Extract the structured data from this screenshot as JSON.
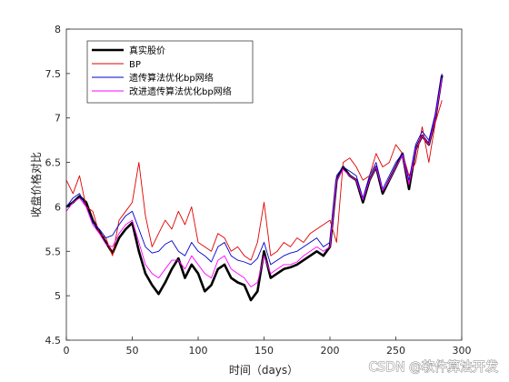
{
  "chart_data": {
    "type": "line",
    "title": "",
    "xlabel": "时间（days）",
    "ylabel": "收盘价格对比",
    "xlim": [
      0,
      300
    ],
    "ylim": [
      4.5,
      8
    ],
    "xticks": [
      "0",
      "50",
      "100",
      "150",
      "200",
      "250",
      "300"
    ],
    "yticks": [
      "4.5",
      "5",
      "5.5",
      "6",
      "6.5",
      "7",
      "7.5",
      "8"
    ],
    "grid": false,
    "legend_position": "top-left",
    "x": [
      0,
      5,
      10,
      15,
      20,
      25,
      30,
      35,
      40,
      45,
      50,
      55,
      60,
      65,
      70,
      75,
      80,
      85,
      90,
      95,
      100,
      105,
      110,
      115,
      120,
      125,
      130,
      135,
      140,
      145,
      150,
      155,
      160,
      165,
      170,
      175,
      180,
      185,
      190,
      195,
      200,
      205,
      210,
      215,
      220,
      225,
      230,
      235,
      240,
      245,
      250,
      255,
      260,
      265,
      270,
      275,
      280,
      285
    ],
    "series": [
      {
        "name": "真实股价",
        "color": "#000000",
        "width": 2.6,
        "values": [
          6.0,
          6.05,
          6.12,
          6.05,
          5.85,
          5.72,
          5.6,
          5.48,
          5.65,
          5.75,
          5.82,
          5.5,
          5.25,
          5.12,
          5.02,
          5.15,
          5.3,
          5.42,
          5.2,
          5.35,
          5.25,
          5.05,
          5.12,
          5.3,
          5.35,
          5.2,
          5.15,
          5.12,
          4.95,
          5.05,
          5.5,
          5.2,
          5.25,
          5.3,
          5.32,
          5.35,
          5.4,
          5.45,
          5.5,
          5.45,
          5.55,
          6.3,
          6.45,
          6.35,
          6.3,
          6.05,
          6.3,
          6.45,
          6.15,
          6.3,
          6.45,
          6.6,
          6.2,
          6.65,
          6.8,
          6.7,
          7.0,
          7.48
        ]
      },
      {
        "name": "BP",
        "color": "#e00000",
        "width": 0.9,
        "values": [
          6.3,
          6.15,
          6.35,
          6.0,
          5.95,
          5.7,
          5.65,
          5.45,
          5.85,
          5.95,
          6.05,
          6.5,
          5.9,
          5.55,
          5.7,
          5.85,
          5.75,
          5.95,
          5.8,
          6.0,
          5.6,
          5.55,
          5.5,
          5.7,
          5.65,
          5.5,
          5.55,
          5.45,
          5.4,
          5.6,
          6.05,
          5.45,
          5.5,
          5.6,
          5.55,
          5.65,
          5.6,
          5.7,
          5.75,
          5.8,
          5.85,
          5.6,
          6.5,
          6.55,
          6.45,
          6.3,
          6.35,
          6.6,
          6.45,
          6.5,
          6.7,
          6.6,
          6.35,
          6.5,
          6.9,
          6.5,
          6.95,
          7.2
        ]
      },
      {
        "name": "遗传算法优化bp网络",
        "color": "#0000cc",
        "width": 0.9,
        "values": [
          6.0,
          6.1,
          6.15,
          6.0,
          5.82,
          5.75,
          5.65,
          5.68,
          5.8,
          5.9,
          5.95,
          5.75,
          5.55,
          5.48,
          5.5,
          5.58,
          5.62,
          5.5,
          5.45,
          5.6,
          5.5,
          5.45,
          5.38,
          5.55,
          5.6,
          5.45,
          5.4,
          5.38,
          5.35,
          5.42,
          5.6,
          5.35,
          5.4,
          5.45,
          5.48,
          5.5,
          5.55,
          5.6,
          5.65,
          5.55,
          5.6,
          6.35,
          6.45,
          6.4,
          6.35,
          6.1,
          6.35,
          6.5,
          6.2,
          6.35,
          6.5,
          6.6,
          6.3,
          6.7,
          6.85,
          6.75,
          7.05,
          7.5
        ]
      },
      {
        "name": "改进遗传算法优化bp网络",
        "color": "#ff00ff",
        "width": 0.9,
        "values": [
          5.95,
          6.05,
          6.1,
          6.0,
          5.8,
          5.7,
          5.58,
          5.55,
          5.7,
          5.8,
          5.85,
          5.6,
          5.35,
          5.25,
          5.2,
          5.3,
          5.4,
          5.4,
          5.3,
          5.45,
          5.35,
          5.25,
          5.2,
          5.4,
          5.45,
          5.3,
          5.25,
          5.2,
          5.1,
          5.15,
          5.45,
          5.25,
          5.3,
          5.35,
          5.35,
          5.38,
          5.45,
          5.5,
          5.55,
          5.5,
          5.55,
          6.3,
          6.42,
          6.35,
          6.3,
          6.08,
          6.3,
          6.45,
          6.18,
          6.3,
          6.45,
          6.58,
          6.25,
          6.65,
          6.8,
          6.7,
          7.0,
          7.45
        ]
      }
    ]
  },
  "watermark": "CSDN @软件算法开发"
}
